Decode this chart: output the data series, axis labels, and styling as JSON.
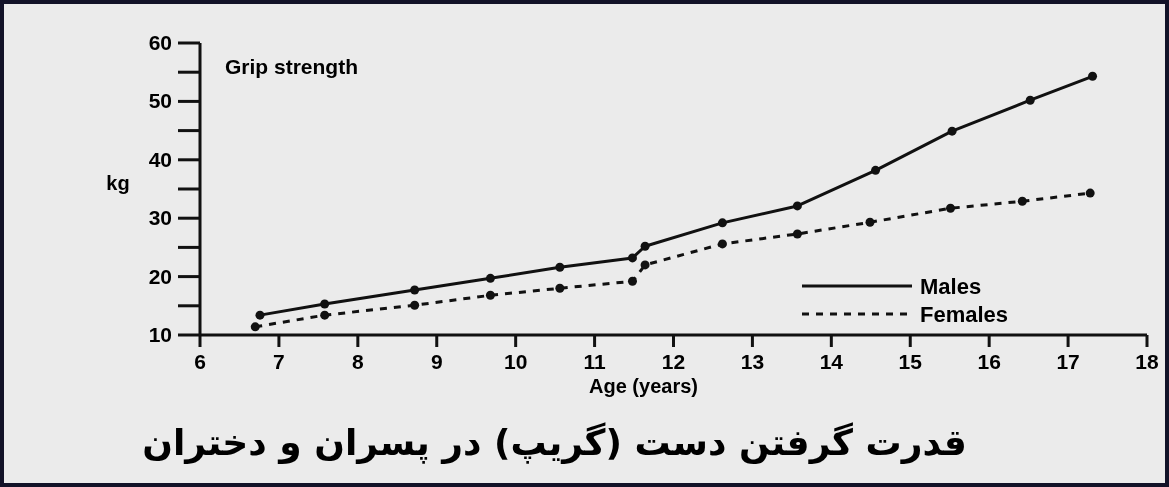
{
  "chart_data": {
    "type": "line",
    "title": "قدرت گرفتن دست (گریپ) در پسران و دختران",
    "annotations": [
      "Grip strength"
    ],
    "xlabel": "Age (years)",
    "ylabel": "kg",
    "xlim": [
      6,
      18
    ],
    "ylim": [
      10,
      60
    ],
    "xticks": [
      6,
      7,
      8,
      9,
      10,
      11,
      12,
      13,
      14,
      15,
      16,
      17,
      18
    ],
    "yticks": [
      10,
      20,
      30,
      40,
      50,
      60
    ],
    "legend": "bottom right",
    "marker": "circle",
    "grid": false,
    "series": [
      {
        "name": "Males",
        "color": "#111111",
        "line_style": "solid",
        "x": [
          6.76,
          7.58,
          8.72,
          9.68,
          10.56,
          11.48,
          11.64,
          12.62,
          13.57,
          14.56,
          15.53,
          16.52,
          17.31
        ],
        "values": [
          13.4,
          15.3,
          17.7,
          19.7,
          21.6,
          23.2,
          25.2,
          29.2,
          32.1,
          38.2,
          44.9,
          50.2,
          54.3
        ]
      },
      {
        "name": "Females",
        "color": "#111111",
        "line_style": "dashed",
        "x": [
          6.7,
          7.58,
          8.72,
          9.68,
          10.56,
          11.48,
          11.64,
          12.62,
          13.57,
          14.49,
          15.51,
          16.42,
          17.28
        ],
        "values": [
          11.4,
          13.4,
          15.1,
          16.8,
          18.0,
          19.2,
          22.0,
          25.6,
          27.3,
          29.3,
          31.7,
          32.9,
          34.3
        ]
      }
    ]
  }
}
